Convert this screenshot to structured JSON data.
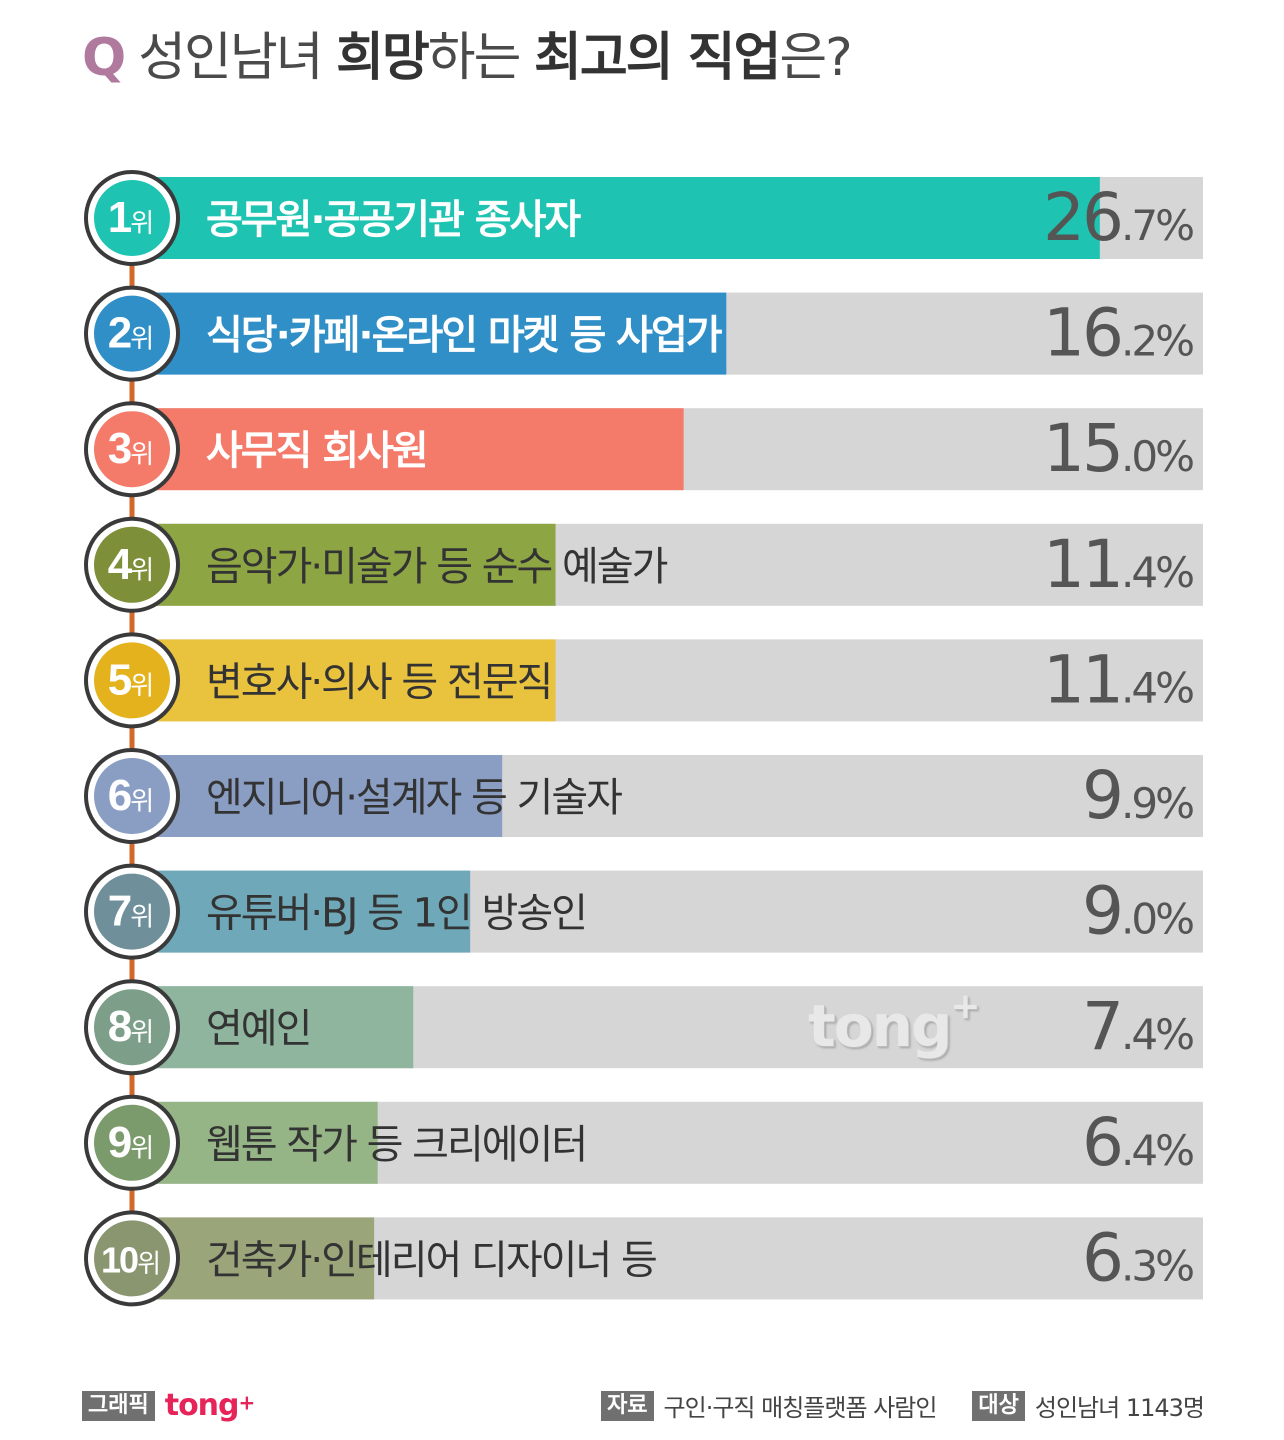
{
  "title": {
    "q": "Q",
    "part1": "성인남녀 ",
    "part2": "희망",
    "part3": "하는 ",
    "part4": "최고의 직업",
    "part5": "은?"
  },
  "chart_data": {
    "type": "bar",
    "orientation": "horizontal",
    "unit": "%",
    "ranks": [
      "1",
      "2",
      "3",
      "4",
      "5",
      "6",
      "7",
      "8",
      "9",
      "10"
    ],
    "rank_suffix": "위",
    "categories": [
      "공무원·공공기관 종사자",
      "식당·카페·온라인 마켓 등 사업가",
      "사무직 회사원",
      "음악가·미술가 등 순수 예술가",
      "변호사·의사 등 전문직",
      "엔지니어·설계자 등 기술자",
      "유튜버·BJ 등 1인 방송인",
      "연예인",
      "웹툰 작가 등 크리에이터",
      "건축가·인테리어 디자이너 등"
    ],
    "values": [
      26.7,
      16.2,
      15.0,
      11.4,
      11.4,
      9.9,
      9.0,
      7.4,
      6.4,
      6.3
    ],
    "value_labels": [
      [
        "26",
        ".7%"
      ],
      [
        "16",
        ".2%"
      ],
      [
        "15",
        ".0%"
      ],
      [
        "11",
        ".4%"
      ],
      [
        "11",
        ".4%"
      ],
      [
        "9",
        ".9%"
      ],
      [
        "9",
        ".0%"
      ],
      [
        "7",
        ".4%"
      ],
      [
        "6",
        ".4%"
      ],
      [
        "6",
        ".3%"
      ]
    ],
    "colors": [
      "#1ec4b1",
      "#2f8fc6",
      "#f47a6a",
      "#8ea544",
      "#e9c23e",
      "#8a9ec4",
      "#6fa8b8",
      "#8fb59e",
      "#96b587",
      "#9aa57a"
    ],
    "circle_colors": [
      "#1ec4b1",
      "#2f8fc6",
      "#f47a6a",
      "#7e8f3a",
      "#e4b21d",
      "#8a9ec4",
      "#6f8f9a",
      "#7d9e88",
      "#7c9b6c",
      "#8a9670"
    ],
    "label_text_colors": [
      "#ffffff",
      "#ffffff",
      "#ffffff",
      "#333333",
      "#333333",
      "#333333",
      "#333333",
      "#333333",
      "#333333",
      "#333333"
    ],
    "track_color": "#d6d6d6",
    "connector_color": "#d2692a",
    "xlim": [
      0,
      29.6
    ]
  },
  "watermark": {
    "main": "tong",
    "plus": "+"
  },
  "footer": {
    "graphic_tag": "그래픽",
    "brand": "tong",
    "brand_plus": "+",
    "source_tag": "자료",
    "source_text": "구인·구직 매칭플랫폼 사람인",
    "target_tag": "대상",
    "target_text": "성인남녀 1143명"
  }
}
